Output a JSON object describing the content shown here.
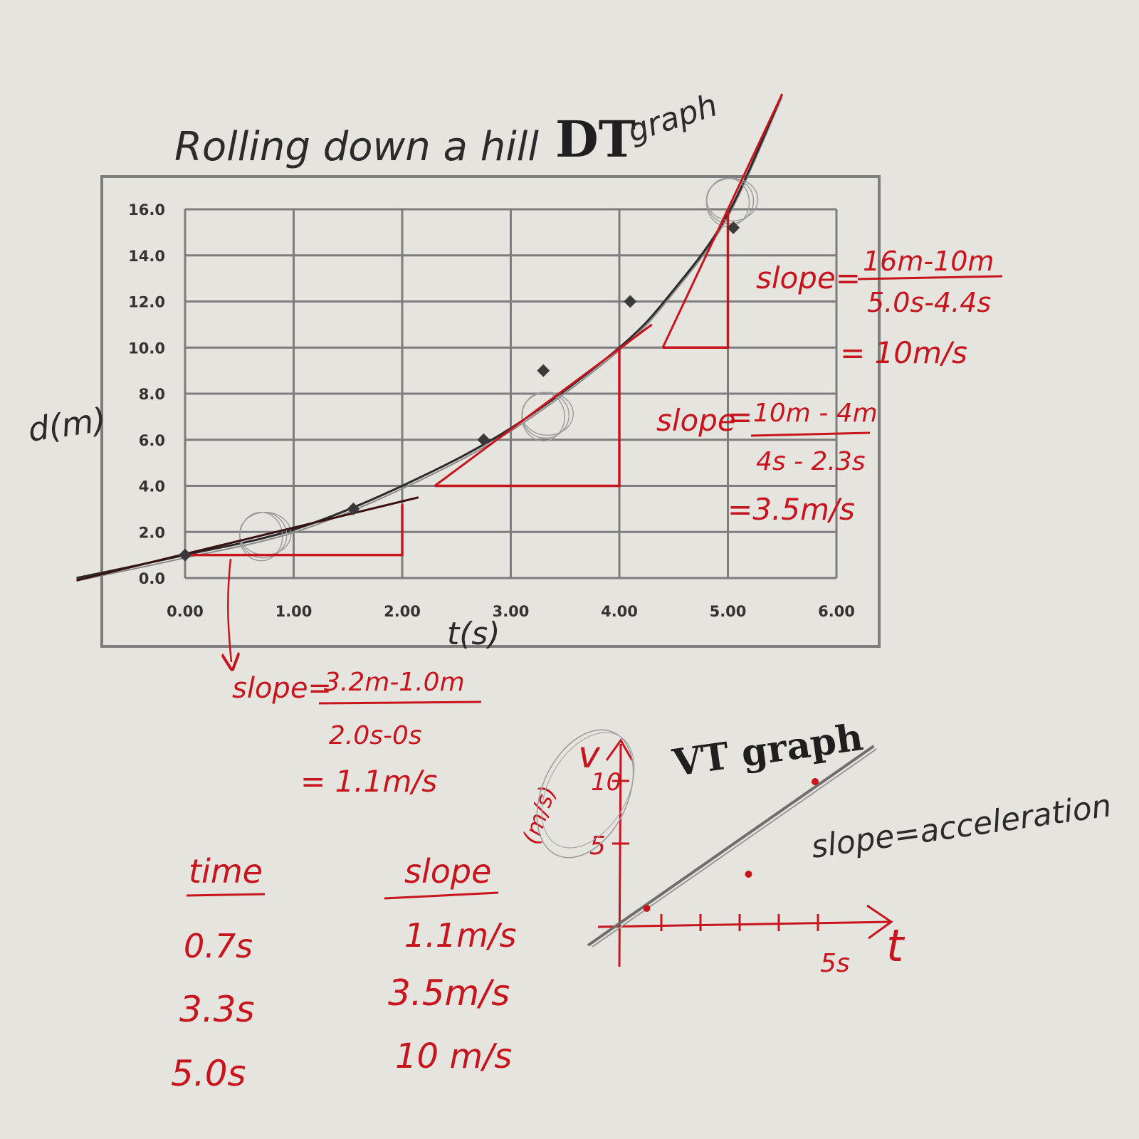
{
  "title": {
    "main": "Rolling down a hill",
    "dt": "DT",
    "graph": "graph"
  },
  "colors": {
    "paper": "#e6e4df",
    "grid": "#7d7d7d",
    "pencil": "#2b2b2b",
    "pen": "#c8141c",
    "marker": "#3a3a3a"
  },
  "chart_data": [
    {
      "type": "scatter",
      "title": "Rolling down a hill DT graph",
      "xlabel": "t(s)",
      "ylabel": "d(m)",
      "xlim": [
        0,
        6
      ],
      "ylim": [
        0,
        16
      ],
      "grid": true,
      "x_ticks": [
        "0.00",
        "1.00",
        "2.00",
        "3.00",
        "4.00",
        "5.00",
        "6.00"
      ],
      "y_ticks": [
        "0.0",
        "2.0",
        "4.0",
        "6.0",
        "8.0",
        "10.0",
        "12.0",
        "14.0",
        "16.0"
      ],
      "points": [
        {
          "x": 0.0,
          "y": 1.0
        },
        {
          "x": 1.55,
          "y": 3.0
        },
        {
          "x": 2.75,
          "y": 6.0
        },
        {
          "x": 3.3,
          "y": 9.0
        },
        {
          "x": 4.1,
          "y": 12.0
        },
        {
          "x": 5.05,
          "y": 15.2
        }
      ],
      "curve": [
        {
          "x": -1.0,
          "y": 0.0
        },
        {
          "x": 0.0,
          "y": 1.0
        },
        {
          "x": 1.0,
          "y": 2.1
        },
        {
          "x": 2.0,
          "y": 4.0
        },
        {
          "x": 3.0,
          "y": 6.5
        },
        {
          "x": 4.0,
          "y": 10.0
        },
        {
          "x": 4.5,
          "y": 12.5
        },
        {
          "x": 5.0,
          "y": 15.8
        },
        {
          "x": 5.5,
          "y": 21.0
        }
      ],
      "tangents": [
        {
          "at_time": 0.7,
          "x1": -1.0,
          "y1": -0.1,
          "x2": 2.15,
          "y2": 3.5,
          "triangle": {
            "x_start": 0.0,
            "x_end": 2.0,
            "y_low": 1.0,
            "y_high": 3.2
          }
        },
        {
          "at_time": 3.3,
          "x1": 2.3,
          "y1": 4.0,
          "x2": 4.3,
          "y2": 11.0,
          "triangle": {
            "x_start": 2.3,
            "x_end": 4.0,
            "y_low": 4.0,
            "y_high": 10.0
          }
        },
        {
          "at_time": 5.0,
          "x1": 4.4,
          "y1": 10.0,
          "x2": 5.5,
          "y2": 21.0,
          "triangle": {
            "x_start": 4.4,
            "x_end": 5.0,
            "y_low": 10.0,
            "y_high": 16.0
          }
        }
      ],
      "circled_points": [
        {
          "x": 0.7,
          "y": 1.8
        },
        {
          "x": 3.3,
          "y": 7.0
        },
        {
          "x": 5.0,
          "y": 16.3
        }
      ]
    },
    {
      "type": "scatter",
      "title": "VT graph",
      "xlabel": "t",
      "ylabel": "v",
      "yunit": "(m/s)",
      "y_ticks": [
        "5",
        "10"
      ],
      "x_tick_label": "5s",
      "points": [
        {
          "x": 0.7,
          "y": 1.1
        },
        {
          "x": 3.3,
          "y": 3.5
        },
        {
          "x": 5.0,
          "y": 10.0
        }
      ],
      "trend_line": {
        "x1": -0.8,
        "y1": -1.5,
        "x2": 6.5,
        "y2": 12.5
      },
      "annotation": "slope=acceleration"
    }
  ],
  "annotations": {
    "slope1": {
      "label": "slope=",
      "numerator": "16m-10m",
      "denominator": "5.0s-4.4s",
      "result": "= 10m/s"
    },
    "slope2": {
      "label": "slope",
      "equals": "=",
      "numerator": "10m - 4m",
      "denominator": "4s - 2.3s",
      "result": "=3.5m/s"
    },
    "slope3": {
      "label": "slope=",
      "numerator": "3.2m-1.0m",
      "denominator": "2.0s-0s",
      "result": "= 1.1m/s"
    }
  },
  "table": {
    "headers": [
      "time",
      "slope"
    ],
    "rows": [
      [
        "0.7s",
        "1.1m/s"
      ],
      [
        "3.3s",
        "3.5m/s"
      ],
      [
        "5.0s",
        "10 m/s"
      ]
    ]
  }
}
